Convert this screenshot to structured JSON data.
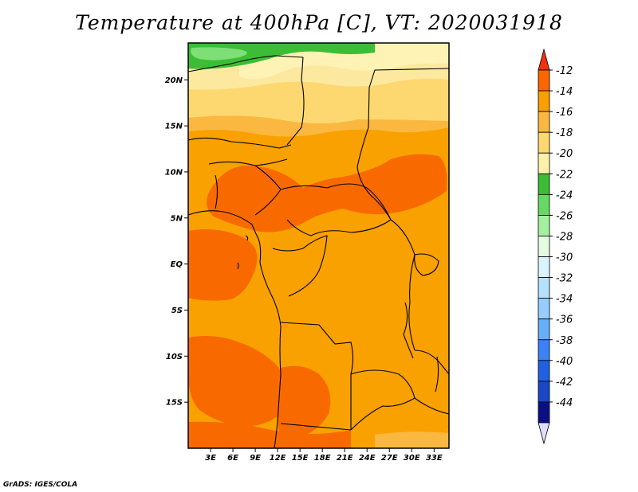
{
  "title": "Temperature at 400hPa [C], VT: 2020031918",
  "credit": "GrADS: IGES/COLA",
  "map": {
    "lon_range": [
      0,
      35
    ],
    "lat_range": [
      -20,
      24
    ],
    "lat_ticks": [
      {
        "value": 20,
        "label": "20N"
      },
      {
        "value": 15,
        "label": "15N"
      },
      {
        "value": 10,
        "label": "10N"
      },
      {
        "value": 5,
        "label": "5N"
      },
      {
        "value": 0,
        "label": "EQ"
      },
      {
        "value": -5,
        "label": "5S"
      },
      {
        "value": -10,
        "label": "10S"
      },
      {
        "value": -15,
        "label": "15S"
      }
    ],
    "lon_ticks": [
      {
        "value": 3,
        "label": "3E"
      },
      {
        "value": 6,
        "label": "6E"
      },
      {
        "value": 9,
        "label": "9E"
      },
      {
        "value": 12,
        "label": "12E"
      },
      {
        "value": 15,
        "label": "15E"
      },
      {
        "value": 18,
        "label": "18E"
      },
      {
        "value": 21,
        "label": "21E"
      },
      {
        "value": 24,
        "label": "24E"
      },
      {
        "value": 27,
        "label": "27E"
      },
      {
        "value": 30,
        "label": "30E"
      },
      {
        "value": 33,
        "label": "33E"
      }
    ]
  },
  "colorbar": {
    "labels": [
      "-12",
      "-14",
      "-16",
      "-18",
      "-20",
      "-22",
      "-24",
      "-26",
      "-28",
      "-30",
      "-32",
      "-34",
      "-36",
      "-38",
      "-40",
      "-42",
      "-44"
    ],
    "colors": [
      "#f03010",
      "#fb6600",
      "#f99f00",
      "#fbb840",
      "#fdd870",
      "#fdf1a8",
      "#3cbd35",
      "#68d865",
      "#a4f09f",
      "#e4fbe0",
      "#d9f3ff",
      "#b4e2fe",
      "#97cdfe",
      "#67aff8",
      "#3a82f5",
      "#1f61e2",
      "#1848c8",
      "#0c0f83",
      "#e0deff"
    ]
  },
  "fields": {
    "band_colors": {
      "warm": "#f86a00",
      "mid": "#f9a100",
      "light": "#fbc25a",
      "pale": "#fde098",
      "paler": "#fef2b4",
      "green": "#3cbd35",
      "lightgreen": "#7ddf75"
    }
  }
}
